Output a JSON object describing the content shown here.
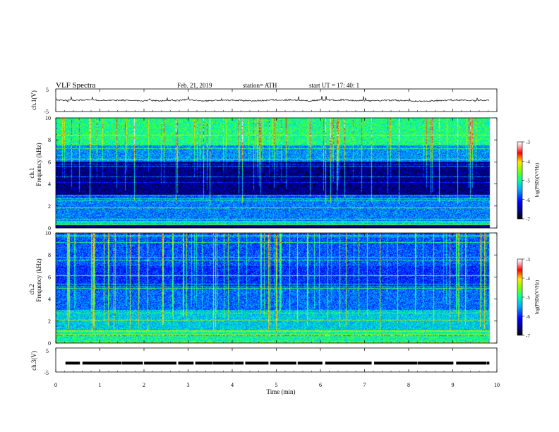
{
  "header": {
    "title": "VLF  Spectra",
    "date": "Feb. 21, 2019",
    "station": "station= ATH",
    "start": "start  UT  =   17: 40: 1"
  },
  "chart_data": {
    "type": "heatmap",
    "xlabel": "Time  (min)",
    "xlim": [
      0,
      10
    ],
    "xticks": [
      0,
      1,
      2,
      3,
      4,
      5,
      6,
      7,
      8,
      9,
      10
    ],
    "panels": [
      {
        "id": "ch1-waveform",
        "type": "line",
        "ylabel": "ch.1(V)",
        "ylim": [
          -5,
          5
        ],
        "yticks": [
          -5,
          5
        ],
        "data_end_min": 9.83
      },
      {
        "id": "ch1-spectrogram",
        "type": "heatmap",
        "ylabel_line1": "ch.1",
        "ylabel_line2": "Frequency  (kHz)",
        "ylim": [
          0,
          10
        ],
        "yticks": [
          0,
          2,
          4,
          6,
          8,
          10
        ],
        "data_end_min": 9.83,
        "colorbar": {
          "label": "log(PSD)(V²/Hz)",
          "range": [
            -7,
            -3
          ],
          "ticks": [
            -3,
            -4,
            -5,
            -6,
            -7
          ]
        }
      },
      {
        "id": "ch2-spectrogram",
        "type": "heatmap",
        "ylabel_line1": "ch.2",
        "ylabel_line2": "Frequency  (kHz)",
        "ylim": [
          0,
          10
        ],
        "yticks": [
          0,
          2,
          4,
          6,
          8,
          10
        ],
        "data_end_min": 9.83,
        "colorbar": {
          "label": "log(PSD)(V²/Hz)",
          "range": [
            -7,
            -3
          ],
          "ticks": [
            -3,
            -4,
            -5,
            -6,
            -7
          ]
        }
      },
      {
        "id": "ch3-waveform",
        "type": "line",
        "ylabel": "ch.3(V)",
        "ylim": [
          -5,
          5
        ],
        "yticks": [
          -5,
          5
        ],
        "data_end_min": 9.83
      }
    ]
  }
}
